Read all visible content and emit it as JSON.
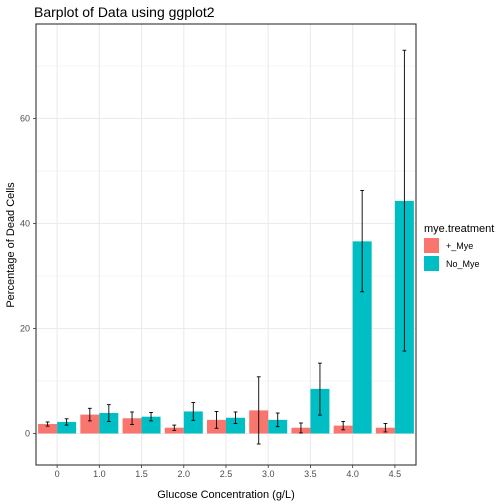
{
  "chart_data": {
    "type": "bar",
    "title": "Barplot of Data using ggplot2",
    "xlabel": "Glucose Concentration (g/L)",
    "ylabel": "Percentage of Dead Cells",
    "categories": [
      "0",
      "1.0",
      "1.5",
      "2.0",
      "2.5",
      "3.0",
      "3.5",
      "4.0",
      "4.5"
    ],
    "ylim": [
      -6,
      78
    ],
    "yticks": [
      0,
      20,
      40,
      60
    ],
    "grid": true,
    "legend": {
      "title": "mye.treatment",
      "position": "right"
    },
    "series": [
      {
        "name": "+_Mye",
        "color": "#f8766d",
        "values": [
          1.8,
          3.6,
          2.9,
          1.1,
          2.6,
          4.4,
          1.1,
          1.5,
          1.1
        ],
        "err_low": [
          1.4,
          2.4,
          1.7,
          0.6,
          1.0,
          -2.0,
          0.1,
          0.7,
          0.3
        ],
        "err_high": [
          2.2,
          4.8,
          4.1,
          1.6,
          4.2,
          10.8,
          2.0,
          2.3,
          1.9
        ]
      },
      {
        "name": "No_Mye",
        "color": "#00bfc4",
        "values": [
          2.2,
          3.9,
          3.2,
          4.2,
          3.0,
          2.6,
          8.5,
          36.6,
          44.3
        ],
        "err_low": [
          1.6,
          2.3,
          2.4,
          2.5,
          1.9,
          1.3,
          3.5,
          27.0,
          15.7
        ],
        "err_high": [
          2.8,
          5.5,
          4.0,
          5.9,
          4.1,
          3.9,
          13.4,
          46.3,
          73.0
        ]
      }
    ]
  }
}
